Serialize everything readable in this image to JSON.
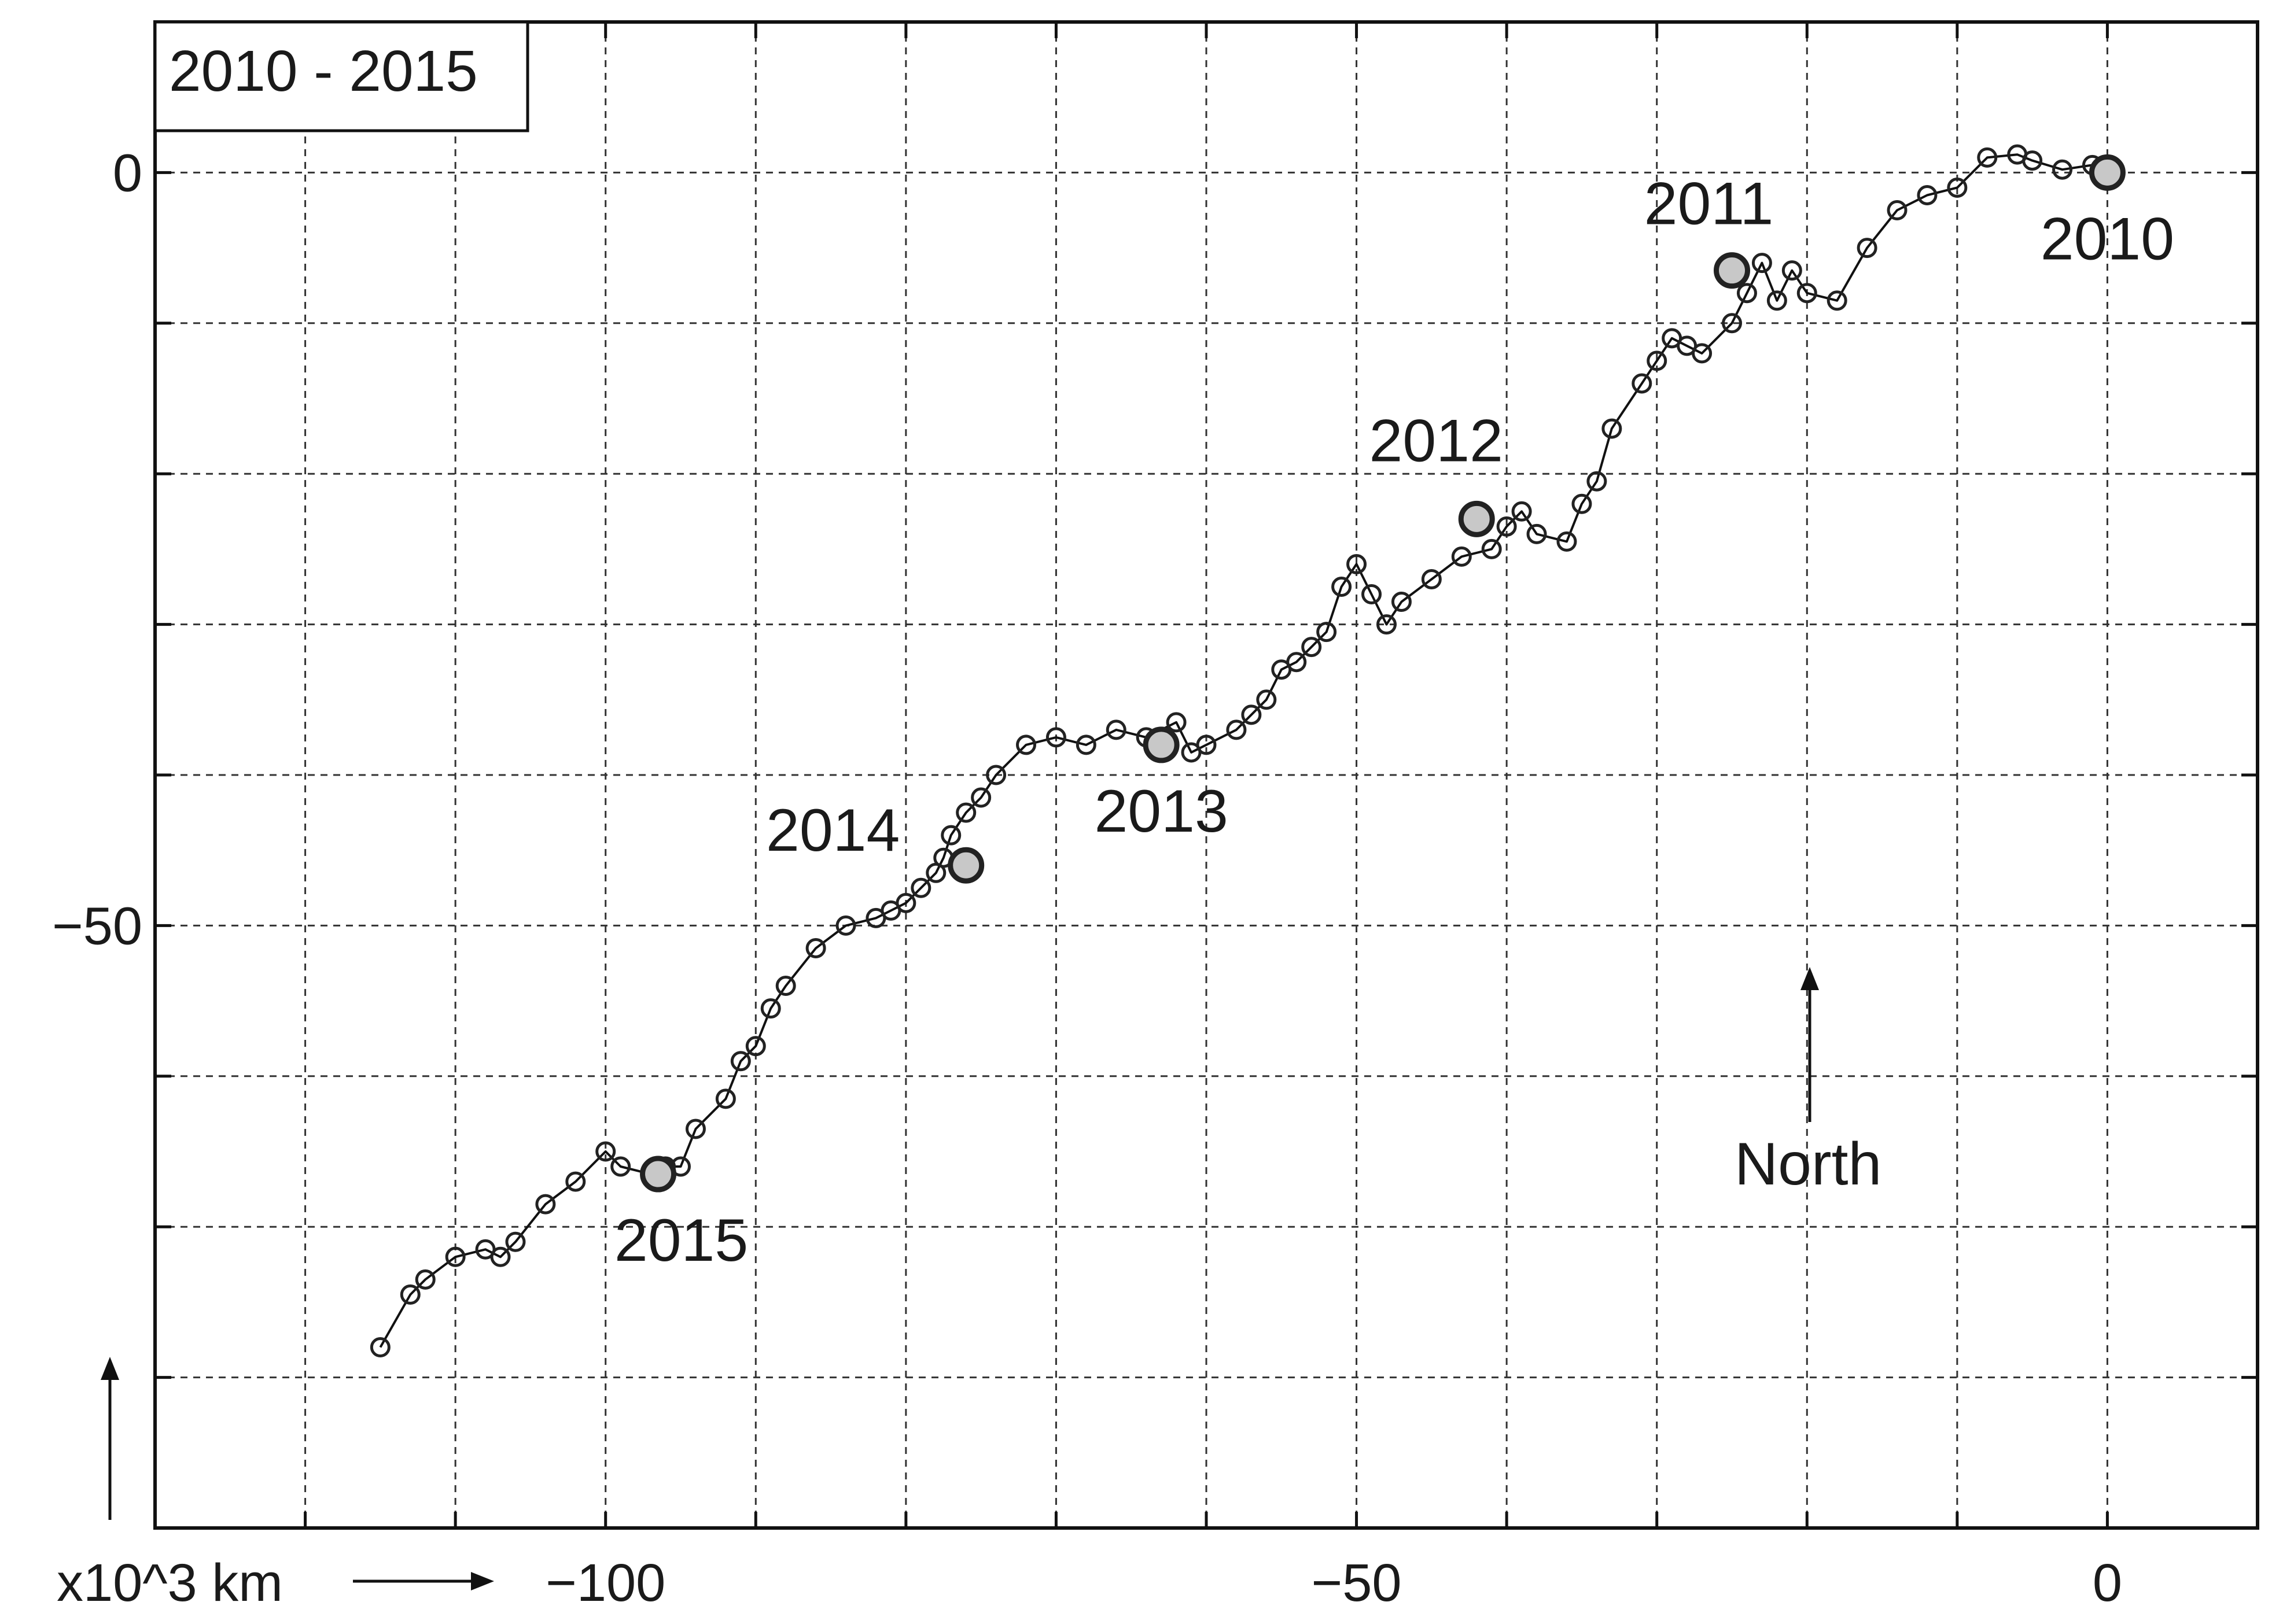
{
  "chart_data": {
    "type": "line",
    "title": "2010 - 2015",
    "xlabel": "",
    "ylabel": "",
    "units_label": "x10^3 km",
    "xlim": [
      -130,
      10
    ],
    "ylim": [
      -90,
      10
    ],
    "x_ticks": [
      {
        "value": -100,
        "label": "−100"
      },
      {
        "value": -50,
        "label": "−50"
      },
      {
        "value": 0,
        "label": "0"
      }
    ],
    "y_ticks": [
      {
        "value": 0,
        "label": "0"
      },
      {
        "value": -50,
        "label": "−50"
      }
    ],
    "x_grid_step": 10,
    "y_grid_step": 10,
    "grid": true,
    "series": [
      {
        "x": [
          0,
          -1,
          -3,
          -5,
          -6,
          -8,
          -10,
          -12,
          -14,
          -16,
          -18,
          -20,
          -21,
          -22,
          -23,
          -24,
          -25,
          -27,
          -28,
          -29,
          -30,
          -31,
          -33,
          -34,
          -35,
          -36,
          -38,
          -39,
          -40,
          -41,
          -43,
          -45,
          -47,
          -48,
          -49,
          -50,
          -51,
          -52,
          -53,
          -54,
          -55,
          -56,
          -57,
          -58,
          -60,
          -61,
          -62,
          -64,
          -66,
          -68,
          -70,
          -72,
          -74,
          -75,
          -76,
          -77,
          -77.5,
          -78,
          -79,
          -80,
          -81,
          -82,
          -84,
          -86,
          -88,
          -89,
          -90,
          -91,
          -92,
          -94,
          -95,
          -96,
          -97,
          -99,
          -100,
          -102,
          -104,
          -106,
          -107,
          -108,
          -110,
          -112,
          -113,
          -115
        ],
        "y": [
          0,
          0.5,
          0.2,
          0.8,
          1.2,
          1.0,
          -1.0,
          -1.5,
          -2.5,
          -5.0,
          -8.5,
          -8.0,
          -6.5,
          -8.5,
          -6.0,
          -8.0,
          -10.0,
          -12.0,
          -11.5,
          -11.0,
          -12.5,
          -14.0,
          -17.0,
          -20.5,
          -22.0,
          -24.5,
          -24.0,
          -22.5,
          -23.5,
          -25.0,
          -25.5,
          -27.0,
          -28.5,
          -30.0,
          -28.0,
          -26.0,
          -27.5,
          -30.5,
          -31.5,
          -32.5,
          -33.0,
          -35.0,
          -36.0,
          -37.0,
          -38.0,
          -38.5,
          -36.5,
          -37.5,
          -37.0,
          -38.0,
          -37.5,
          -38.0,
          -40.0,
          -41.5,
          -42.5,
          -44.0,
          -45.5,
          -46.5,
          -47.5,
          -48.5,
          -49.0,
          -49.5,
          -50.0,
          -51.5,
          -54.0,
          -55.5,
          -58.0,
          -59.0,
          -61.5,
          -63.5,
          -66.0,
          -66.0,
          -66.5,
          -66.0,
          -65.0,
          -67.0,
          -68.5,
          -71.0,
          -72.0,
          -71.5,
          -72.0,
          -73.5,
          -74.5,
          -78.0
        ]
      }
    ],
    "year_markers": [
      {
        "label": "2010",
        "x": 0,
        "y": 0
      },
      {
        "label": "2011",
        "x": -25,
        "y": -6.5
      },
      {
        "label": "2012",
        "x": -42,
        "y": -23
      },
      {
        "label": "2013",
        "x": -63,
        "y": -38
      },
      {
        "label": "2014",
        "x": -76,
        "y": -46
      },
      {
        "label": "2015",
        "x": -96.5,
        "y": -66.5
      }
    ],
    "north_label": "North"
  }
}
